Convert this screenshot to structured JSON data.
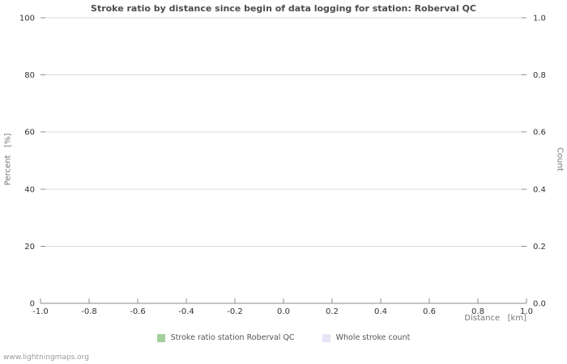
{
  "page": {
    "watermark": "www.lightningmaps.org"
  },
  "chart_data": {
    "type": "line",
    "title": "Stroke ratio by distance since begin of data logging for station: Roberval QC",
    "xlabel": "Distance   [km]",
    "ylabel_left": "Percent   [%]",
    "ylabel_right": "Count",
    "xlim": [
      -1.0,
      1.0
    ],
    "ylim_left": [
      0,
      100
    ],
    "ylim_right": [
      0.0,
      1.0
    ],
    "x_ticks": [
      -1.0,
      -0.8,
      -0.6,
      -0.4,
      -0.2,
      0.0,
      0.2,
      0.4,
      0.6,
      0.8,
      1.0
    ],
    "y_ticks_left": [
      0,
      20,
      40,
      60,
      80,
      100
    ],
    "y_ticks_right": [
      0.0,
      0.2,
      0.4,
      0.6,
      0.8,
      1.0
    ],
    "grid": true,
    "legend_position": "bottom",
    "series": [
      {
        "name": "Stroke ratio station Roberval QC",
        "color": "#a5cf9f",
        "x": [],
        "values": []
      },
      {
        "name": "Whole stroke count",
        "color": "#e6e4f7",
        "x": [],
        "values": []
      }
    ],
    "colors": {
      "grid": "#d9d9d9",
      "axis": "#8c8c8c",
      "tick_label": "#333333",
      "title_text": "#4d4d4d"
    }
  }
}
